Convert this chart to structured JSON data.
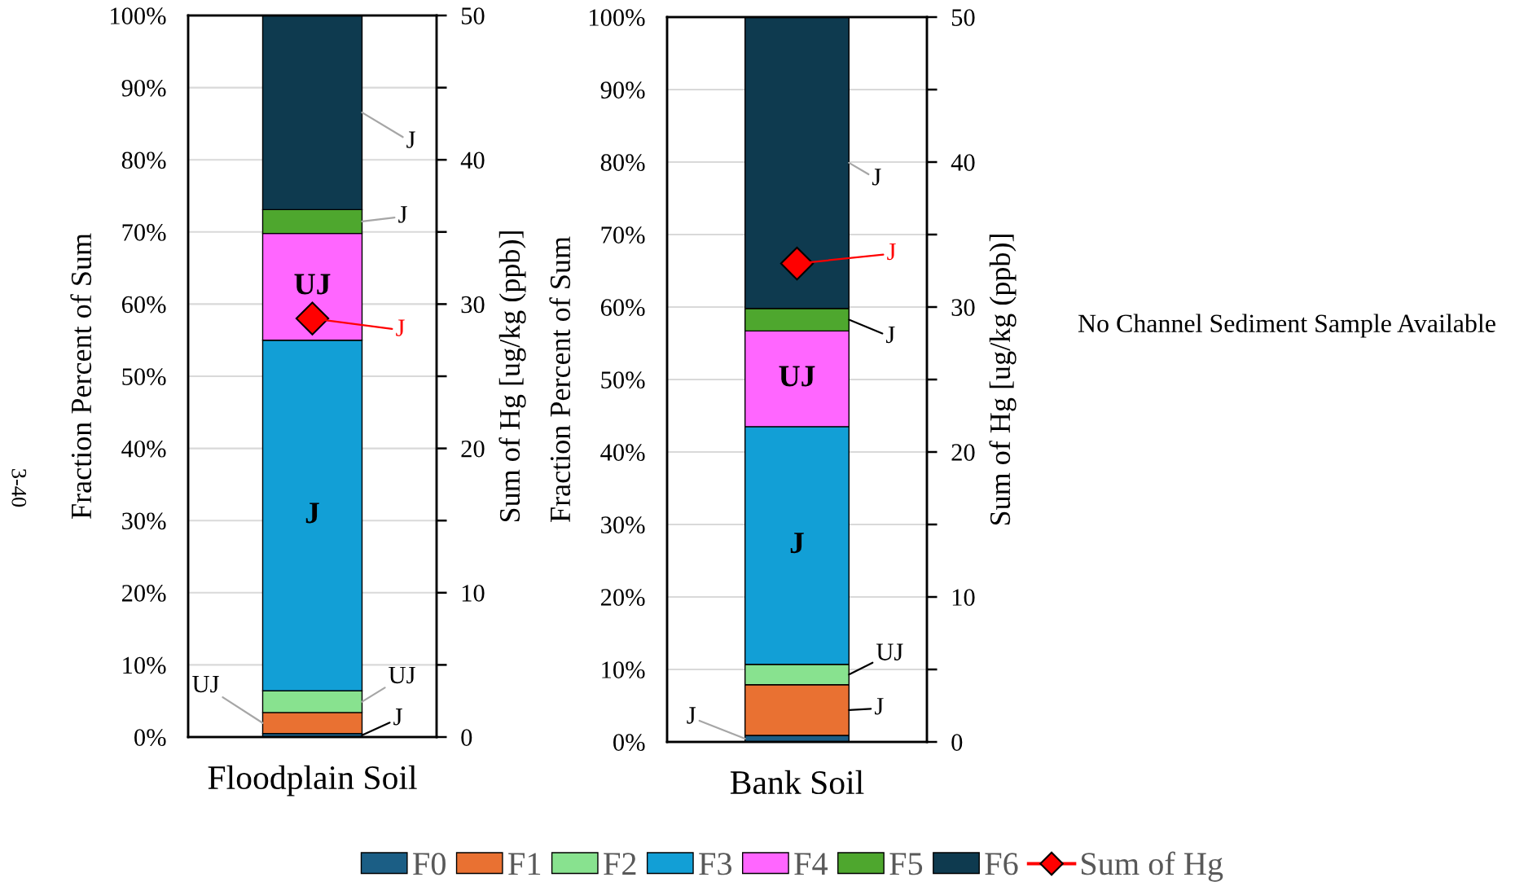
{
  "chart_data": [
    {
      "type": "bar",
      "stacked": true,
      "categories": [
        "Floodplain Soil"
      ],
      "ylabel": "Fraction Percent of Sum",
      "y2label": "Sum of Hg [ug/kg (ppb)]",
      "ylim": [
        0,
        100
      ],
      "yticks": [
        {
          "value": 0,
          "label": "0%"
        },
        {
          "value": 10,
          "label": "10%"
        },
        {
          "value": 20,
          "label": "20%"
        },
        {
          "value": 30,
          "label": "30%"
        },
        {
          "value": 40,
          "label": "40%"
        },
        {
          "value": 50,
          "label": "50%"
        },
        {
          "value": 60,
          "label": "60%"
        },
        {
          "value": 70,
          "label": "70%"
        },
        {
          "value": 80,
          "label": "80%"
        },
        {
          "value": 90,
          "label": "90%"
        },
        {
          "value": 100,
          "label": "100%"
        }
      ],
      "y2lim": [
        0,
        50
      ],
      "y2ticks": [
        0,
        {
          "value": 5,
          "label": null
        },
        10,
        {
          "value": 15,
          "label": null
        },
        20,
        {
          "value": 25,
          "label": null
        },
        30,
        {
          "value": 35,
          "label": null
        },
        40,
        {
          "value": 45,
          "label": null
        },
        50
      ],
      "grid": "y",
      "legend": "bottom",
      "annotations": [
        "3-40"
      ],
      "series": [
        {
          "name": "F0",
          "color": "#1b5e85",
          "values": [
            0.5
          ],
          "value_labels": [
            "J"
          ]
        },
        {
          "name": "F1",
          "color": "#e97132",
          "values": [
            2.9
          ],
          "value_labels": [
            "UJ"
          ]
        },
        {
          "name": "F2",
          "color": "#88e28f",
          "values": [
            3.0
          ],
          "value_labels": [
            "UJ"
          ]
        },
        {
          "name": "F3",
          "color": "#129fd6",
          "values": [
            48.6
          ],
          "value_labels": [
            "J"
          ]
        },
        {
          "name": "F4",
          "color": "#ff66ff",
          "values": [
            14.8
          ],
          "value_labels": [
            "UJ"
          ]
        },
        {
          "name": "F5",
          "color": "#4ea72e",
          "values": [
            3.3
          ],
          "value_labels": [
            "J"
          ]
        },
        {
          "name": "F6",
          "color": "#0e3a4f",
          "values": [
            26.9
          ],
          "value_labels": [
            "J"
          ]
        },
        {
          "name": "Sum of Hg",
          "type": "line",
          "axis": "y2",
          "marker": "diamond",
          "color": "#ff0000",
          "values": [
            29.0
          ],
          "value_labels": [
            "J"
          ]
        }
      ]
    },
    {
      "type": "bar",
      "stacked": true,
      "categories": [
        "Bank Soil"
      ],
      "ylabel": "Fraction Percent of Sum",
      "y2label": "Sum of Hg [ug/kg (ppb)]",
      "ylim": [
        0,
        100
      ],
      "yticks": [
        {
          "value": 0,
          "label": "0%"
        },
        {
          "value": 10,
          "label": "10%"
        },
        {
          "value": 20,
          "label": "20%"
        },
        {
          "value": 30,
          "label": "30%"
        },
        {
          "value": 40,
          "label": "40%"
        },
        {
          "value": 50,
          "label": "50%"
        },
        {
          "value": 60,
          "label": "60%"
        },
        {
          "value": 70,
          "label": "70%"
        },
        {
          "value": 80,
          "label": "80%"
        },
        {
          "value": 90,
          "label": "90%"
        },
        {
          "value": 100,
          "label": "100%"
        }
      ],
      "y2lim": [
        0,
        50
      ],
      "y2ticks": [
        0,
        {
          "value": 5,
          "label": null
        },
        10,
        {
          "value": 15,
          "label": null
        },
        20,
        {
          "value": 25,
          "label": null
        },
        30,
        {
          "value": 35,
          "label": null
        },
        40,
        {
          "value": 45,
          "label": null
        },
        50
      ],
      "grid": "y",
      "series": [
        {
          "name": "F0",
          "color": "#1b5e85",
          "values": [
            0.9
          ],
          "value_labels": [
            "J"
          ]
        },
        {
          "name": "F1",
          "color": "#e97132",
          "values": [
            7.0
          ],
          "value_labels": [
            "J"
          ]
        },
        {
          "name": "F2",
          "color": "#88e28f",
          "values": [
            2.8
          ],
          "value_labels": [
            "UJ"
          ]
        },
        {
          "name": "F3",
          "color": "#129fd6",
          "values": [
            32.8
          ],
          "value_labels": [
            "J"
          ]
        },
        {
          "name": "F4",
          "color": "#ff66ff",
          "values": [
            13.2
          ],
          "value_labels": [
            "UJ"
          ]
        },
        {
          "name": "F5",
          "color": "#4ea72e",
          "values": [
            3.1
          ],
          "value_labels": [
            "J"
          ]
        },
        {
          "name": "F6",
          "color": "#0e3a4f",
          "values": [
            40.2
          ],
          "value_labels": [
            "J"
          ]
        },
        {
          "name": "Sum of Hg",
          "type": "line",
          "axis": "y2",
          "marker": "diamond",
          "color": "#ff0000",
          "values": [
            33.0
          ],
          "value_labels": [
            "J"
          ]
        }
      ]
    },
    {
      "type": "other",
      "annotations": [
        "No Channel Sediment Sample Available"
      ]
    }
  ]
}
